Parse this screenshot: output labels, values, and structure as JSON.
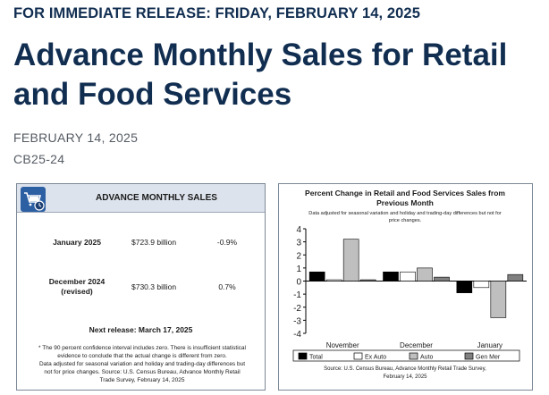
{
  "header": {
    "release_line": "FOR IMMEDIATE RELEASE: FRIDAY, FEBRUARY 14, 2025",
    "title": "Advance Monthly Sales for Retail and Food Services",
    "date": "FEBRUARY 14, 2025",
    "release_id": "CB25-24"
  },
  "summary_card": {
    "title": "ADVANCE MONTHLY SALES",
    "icon": "shopping-cart-clock-icon",
    "rows": [
      {
        "label_line1": "January 2025",
        "label_line2": "",
        "value": "$723.9 billion",
        "change": "-0.9%"
      },
      {
        "label_line1": "December 2024",
        "label_line2": "(revised)",
        "value": "$730.3 billion",
        "change": "0.7%"
      }
    ],
    "next_release": "Next release: March 17, 2025",
    "footnote_lines": [
      "* The 90 percent confidence interval includes zero. There is insufficient statistical",
      "evidence to conclude that the actual change is different from zero.",
      "Data adjusted for seasonal variation and holiday and trading-day differences but",
      "not for price changes. Source: U.S. Census Bureau, Advance Monthly Retail",
      "Trade Survey, February 14, 2025"
    ]
  },
  "chart_data": {
    "type": "bar",
    "title_line1": "Percent Change in Retail and Food Services Sales from",
    "title_line2": "Previous Month",
    "subtitle_line1": "Data adjusted for seasonal variation and holiday and trading-day differences but not for",
    "subtitle_line2": "price changes.",
    "categories": [
      "November",
      "December",
      "January"
    ],
    "series": [
      {
        "name": "Total",
        "color": "#000000",
        "values": [
          0.7,
          0.7,
          -0.9
        ]
      },
      {
        "name": "Ex Auto",
        "color": "#ffffff",
        "values": [
          0.1,
          0.7,
          -0.5
        ]
      },
      {
        "name": "Auto",
        "color": "#bfbfbf",
        "values": [
          3.2,
          1.0,
          -2.8
        ]
      },
      {
        "name": "Gen Mer",
        "color": "#808080",
        "values": [
          0.1,
          0.3,
          0.5
        ]
      }
    ],
    "ylim": [
      -4,
      4
    ],
    "yticks": [
      "4",
      "3",
      "2",
      "1",
      "0",
      "-1",
      "-2",
      "-3",
      "-4"
    ],
    "source_line1": "Source: U.S. Census Bureau, Advance Monthly Retail Trade Survey,",
    "source_line2": "February 14, 2025"
  }
}
